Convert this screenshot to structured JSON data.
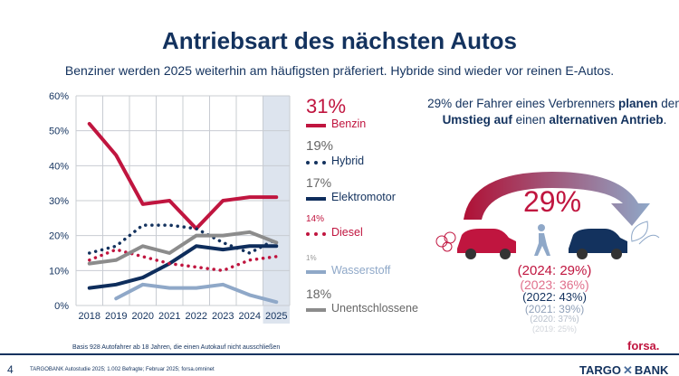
{
  "page": {
    "title": "Antriebsart des nächsten Autos",
    "subtitle": "Benziner werden 2025 weiterhin am häufigsten präferiert. Hybride sind wieder vor reinen E-Autos."
  },
  "chart_data": {
    "type": "line",
    "categories": [
      "2018",
      "2019",
      "2020",
      "2021",
      "2022",
      "2023",
      "2024",
      "2025"
    ],
    "ylim": [
      0,
      60
    ],
    "yticks": [
      "0%",
      "10%",
      "20%",
      "30%",
      "40%",
      "50%",
      "60%"
    ],
    "grid": true,
    "highlight_category": "2025",
    "series": [
      {
        "name": "Benzin",
        "label": "31%",
        "values": [
          52,
          43,
          29,
          30,
          22,
          30,
          31,
          31
        ],
        "color": "#c0153f",
        "dash": false
      },
      {
        "name": "Hybrid",
        "label": "19%",
        "values": [
          15,
          17,
          23,
          23,
          22,
          18,
          15,
          19
        ],
        "color": "#13325e",
        "dash": true
      },
      {
        "name": "Elektromotor",
        "label": "17%",
        "values": [
          5,
          6,
          8,
          12,
          17,
          16,
          17,
          17
        ],
        "color": "#0e2d5c",
        "dash": false
      },
      {
        "name": "Diesel",
        "label": "14%",
        "values": [
          13,
          16,
          14,
          12,
          11,
          10,
          13,
          14
        ],
        "color": "#c0153f",
        "dash": true
      },
      {
        "name": "Wasserstoff",
        "label": "1%",
        "values": [
          null,
          2,
          6,
          5,
          5,
          6,
          3,
          1
        ],
        "color": "#8fa8c8",
        "dash": false
      },
      {
        "name": "Unentschlossene",
        "label": "18%",
        "values": [
          12,
          13,
          17,
          15,
          20,
          20,
          21,
          18
        ],
        "color": "#8c8c8c",
        "dash": false
      }
    ]
  },
  "right": {
    "text_pre": "29% der Fahrer eines Verbrenners ",
    "text_b1": "planen",
    "text_mid": " den ",
    "text_b2": "Umstieg auf",
    "text_mid2": " einen ",
    "text_b3": "alternativen Antrieb",
    "text_end": ".",
    "big": "29%",
    "history": [
      {
        "text": "(2024: 29%)",
        "color": "#c0153f"
      },
      {
        "text": "(2023: 36%)",
        "color": "#e0708c"
      },
      {
        "text": "(2022: 43%)",
        "color": "#13325e"
      },
      {
        "text": "(2021: 39%)",
        "color": "#8fa0b8"
      },
      {
        "text": "(2020: 37%)",
        "color": "#b8c0cc"
      },
      {
        "text": "(2019: 25%)",
        "color": "#d0d4da"
      }
    ]
  },
  "footer": {
    "basis": "Basis 928 Autofahrer ab 18 Jahren, die einen Autokauf nicht ausschließen",
    "page_number": "4",
    "source": "TARGOBANK Autostudie 2025; 1.002 Befragte; Februar 2025; forsa.omninet",
    "forsa": "forsa.",
    "bank_left": "TARGO",
    "bank_right": "BANK"
  }
}
